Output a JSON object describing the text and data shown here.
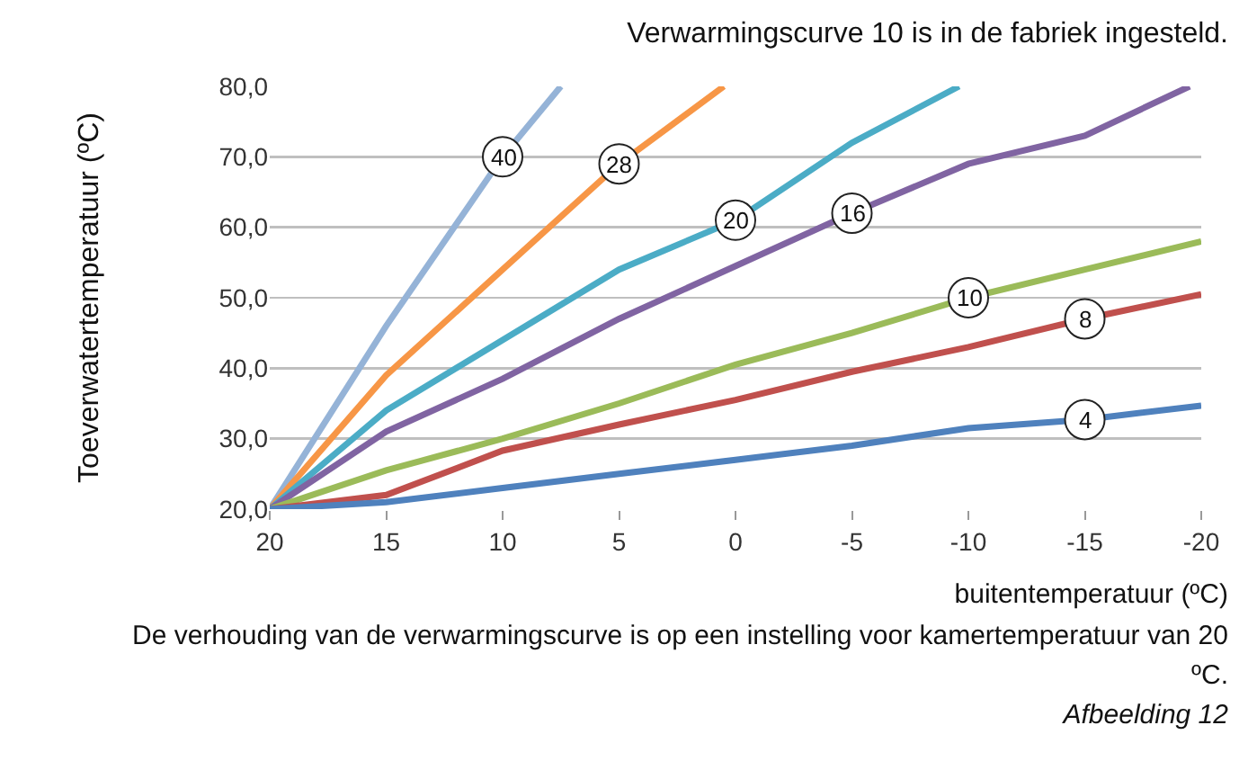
{
  "chart_data": {
    "type": "line",
    "title": "Verwarmingscurve 10 is in de fabriek ingesteld.",
    "xlabel": "buitentemperatuur (ºC)",
    "ylabel": "Toeverwatertemperatuur (ºC)",
    "annotations": [
      "De verhouding van de verwarmingscurve is op een instelling voor kamertemperatuur van 20 ºC.",
      "Afbeelding 12"
    ],
    "xlim": [
      20,
      -20
    ],
    "xticks": [
      20,
      15,
      10,
      5,
      0,
      -5,
      -10,
      -15,
      -20
    ],
    "ylim": [
      20,
      80
    ],
    "yticks": [
      {
        "value": 20,
        "label": "20,0"
      },
      {
        "value": 30,
        "label": "30,0"
      },
      {
        "value": 40,
        "label": "40,0"
      },
      {
        "value": 50,
        "label": "50,0"
      },
      {
        "value": 60,
        "label": "60,0"
      },
      {
        "value": 70,
        "label": "70,0"
      },
      {
        "value": 80,
        "label": "80,0"
      }
    ],
    "grid": "y",
    "legend": false,
    "marker": "none",
    "line_style": "solid",
    "series": [
      {
        "name": "40",
        "color": "#95b3d7",
        "x": [
          20,
          15,
          10,
          7.5
        ],
        "values": [
          20,
          46,
          70,
          80
        ]
      },
      {
        "name": "28",
        "color": "#f79646",
        "x": [
          20,
          15,
          10,
          5,
          0.5
        ],
        "values": [
          20,
          39,
          54,
          69,
          80
        ]
      },
      {
        "name": "20",
        "color": "#4bacc6",
        "x": [
          20,
          15,
          10,
          5,
          0,
          -5,
          -9.6
        ],
        "values": [
          20,
          34,
          44,
          54,
          61,
          72,
          80
        ]
      },
      {
        "name": "16",
        "color": "#8064a2",
        "x": [
          20,
          15,
          10,
          5,
          0,
          -5,
          -10,
          -15,
          -19.5
        ],
        "values": [
          20,
          31,
          38.5,
          47,
          54.5,
          62,
          69,
          73,
          80
        ]
      },
      {
        "name": "10",
        "color": "#9bbb59",
        "x": [
          20,
          15,
          10,
          5,
          0,
          -5,
          -10,
          -15,
          -20
        ],
        "values": [
          20,
          25.5,
          30,
          35,
          40.5,
          45,
          50,
          54,
          58
        ]
      },
      {
        "name": "8",
        "color": "#c0504d",
        "x": [
          20,
          15,
          10,
          5,
          0,
          -5,
          -10,
          -15,
          -20
        ],
        "values": [
          20,
          22,
          28.3,
          32,
          35.5,
          39.5,
          43,
          47,
          50.5
        ]
      },
      {
        "name": "4",
        "color": "#4f81bd",
        "x": [
          20,
          15,
          10,
          5,
          0,
          -5,
          -10,
          -15,
          -20
        ],
        "values": [
          20,
          21,
          23,
          25,
          27,
          29,
          31.5,
          32.7,
          34.7
        ]
      }
    ]
  }
}
